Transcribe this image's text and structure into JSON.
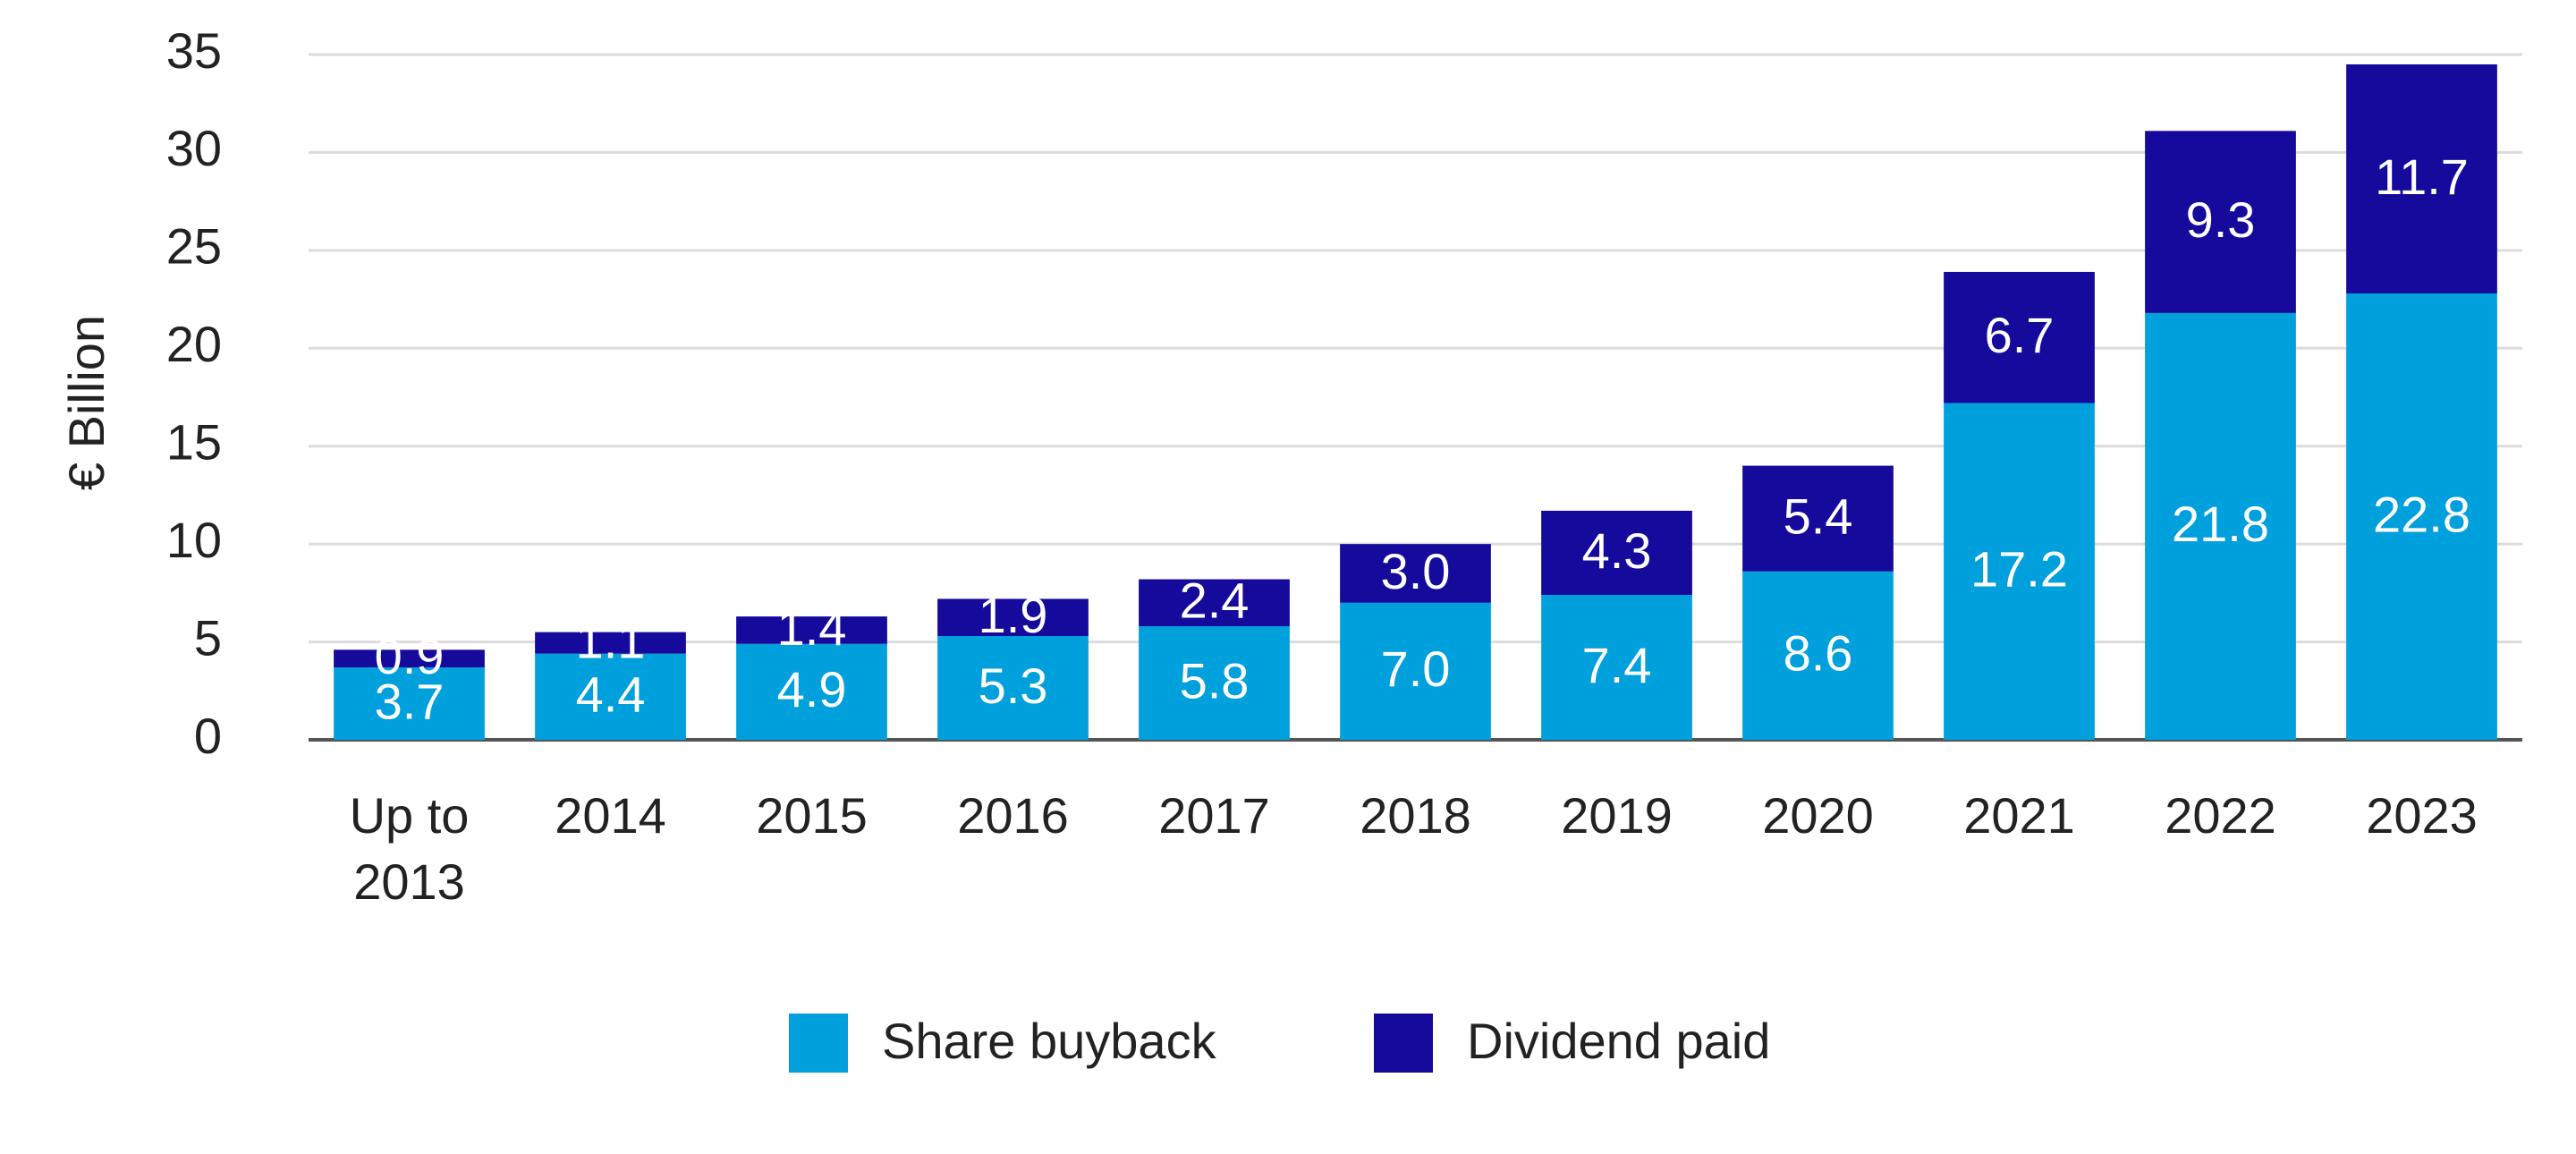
{
  "chart_data": {
    "type": "stacked-bar",
    "y_label": "€ Billion",
    "categories": [
      "Up to 2013",
      "2014",
      "2015",
      "2016",
      "2017",
      "2018",
      "2019",
      "2020",
      "2021",
      "2022",
      "2023"
    ],
    "series": [
      {
        "name": "Share buyback",
        "color": "#00a0dc",
        "values": [
          3.7,
          4.4,
          4.9,
          5.3,
          5.8,
          7.0,
          7.4,
          8.6,
          17.2,
          21.8,
          22.8
        ],
        "value_labels": [
          "3.7",
          "4.4",
          "4.9",
          "5.3",
          "5.8",
          "7.0",
          "7.4",
          "8.6",
          "17.2",
          "21.8",
          "22.8"
        ]
      },
      {
        "name": "Dividend paid",
        "color": "#150a9b",
        "values": [
          0.9,
          1.1,
          1.4,
          1.9,
          2.4,
          3.0,
          4.3,
          5.4,
          6.7,
          9.3,
          11.7
        ],
        "value_labels": [
          "0.9",
          "1.1",
          "1.4",
          "1.9",
          "2.4",
          "3.0",
          "4.3",
          "5.4",
          "6.7",
          "9.3",
          "11.7"
        ]
      }
    ],
    "ylim": [
      0,
      35
    ],
    "yticks": [
      0,
      5,
      10,
      15,
      20,
      25,
      30,
      35
    ],
    "grid": true,
    "legend": "bottom"
  }
}
